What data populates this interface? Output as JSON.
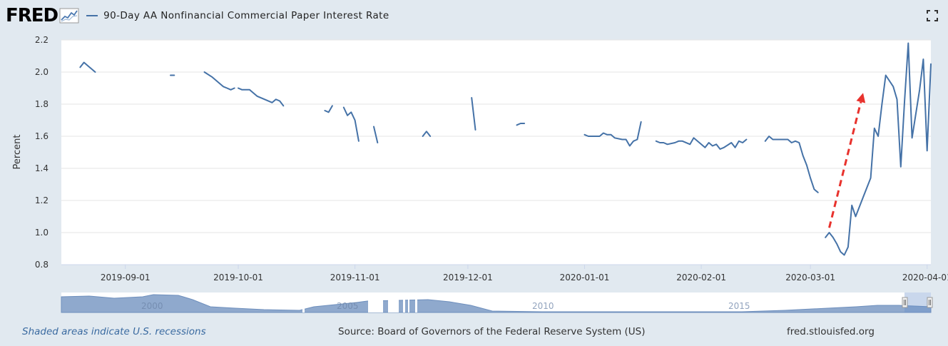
{
  "header": {
    "logo_text": "FRED",
    "series_title": "90-Day AA Nonfinancial Commercial Paper Interest Rate"
  },
  "footer": {
    "recession_note": "Shaded areas indicate U.S. recessions",
    "source": "Source: Board of Governors of the Federal Reserve System (US)",
    "site": "fred.stlouisfed.org"
  },
  "colors": {
    "series": "#4572a7",
    "annotation_arrow": "#e8322d",
    "navigator_fill": "#8fa9cd"
  },
  "icons": [
    "fred-logo-graph-icon",
    "fullscreen-icon"
  ],
  "chart_data": {
    "type": "line",
    "ylabel": "Percent",
    "ylim": [
      0.8,
      2.2
    ],
    "yticks": [
      "2.2",
      "2.0",
      "1.8",
      "1.6",
      "1.4",
      "1.2",
      "1.0",
      "0.8"
    ],
    "xticks": [
      "2019-09-01",
      "2019-10-01",
      "2019-11-01",
      "2019-12-01",
      "2020-01-01",
      "2020-02-01",
      "2020-03-01",
      "2020-04-01"
    ],
    "series": [
      {
        "name": "90-Day AA Nonfinancial Commercial Paper Interest Rate",
        "segments": [
          [
            [
              "2019-08-20",
              2.03
            ],
            [
              "2019-08-21",
              2.06
            ],
            [
              "2019-08-22",
              2.04
            ],
            [
              "2019-08-23",
              2.02
            ],
            [
              "2019-08-24",
              2.0
            ]
          ],
          [
            [
              "2019-09-13",
              1.98
            ],
            [
              "2019-09-14",
              1.98
            ]
          ],
          [
            [
              "2019-09-22",
              2.0
            ],
            [
              "2019-09-24",
              1.97
            ],
            [
              "2019-09-26",
              1.93
            ],
            [
              "2019-09-27",
              1.91
            ],
            [
              "2019-09-28",
              1.9
            ],
            [
              "2019-09-29",
              1.89
            ],
            [
              "2019-09-30",
              1.9
            ]
          ],
          [
            [
              "2019-10-01",
              1.9
            ],
            [
              "2019-10-02",
              1.89
            ],
            [
              "2019-10-04",
              1.89
            ],
            [
              "2019-10-06",
              1.85
            ],
            [
              "2019-10-08",
              1.83
            ],
            [
              "2019-10-10",
              1.81
            ],
            [
              "2019-10-11",
              1.83
            ],
            [
              "2019-10-12",
              1.82
            ],
            [
              "2019-10-13",
              1.79
            ]
          ],
          [
            [
              "2019-10-24",
              1.76
            ],
            [
              "2019-10-25",
              1.75
            ],
            [
              "2019-10-26",
              1.79
            ]
          ],
          [
            [
              "2019-10-29",
              1.78
            ],
            [
              "2019-10-30",
              1.73
            ],
            [
              "2019-10-31",
              1.75
            ],
            [
              "2019-11-01",
              1.7
            ],
            [
              "2019-11-02",
              1.57
            ]
          ],
          [
            [
              "2019-11-06",
              1.66
            ],
            [
              "2019-11-07",
              1.56
            ]
          ],
          [
            [
              "2019-11-19",
              1.6
            ],
            [
              "2019-11-20",
              1.63
            ],
            [
              "2019-11-21",
              1.6
            ]
          ],
          [
            [
              "2019-12-02",
              1.84
            ],
            [
              "2019-12-03",
              1.64
            ]
          ],
          [
            [
              "2019-12-14",
              1.67
            ],
            [
              "2019-12-15",
              1.68
            ],
            [
              "2019-12-16",
              1.68
            ]
          ],
          [
            [
              "2020-01-01",
              1.61
            ],
            [
              "2020-01-02",
              1.6
            ],
            [
              "2020-01-04",
              1.6
            ],
            [
              "2020-01-05",
              1.6
            ],
            [
              "2020-01-06",
              1.62
            ],
            [
              "2020-01-07",
              1.61
            ],
            [
              "2020-01-08",
              1.61
            ],
            [
              "2020-01-09",
              1.59
            ],
            [
              "2020-01-11",
              1.58
            ],
            [
              "2020-01-12",
              1.58
            ],
            [
              "2020-01-13",
              1.54
            ],
            [
              "2020-01-14",
              1.57
            ],
            [
              "2020-01-15",
              1.58
            ],
            [
              "2020-01-16",
              1.69
            ]
          ],
          [
            [
              "2020-01-20",
              1.57
            ],
            [
              "2020-01-21",
              1.56
            ],
            [
              "2020-01-22",
              1.56
            ],
            [
              "2020-01-23",
              1.55
            ],
            [
              "2020-01-25",
              1.56
            ],
            [
              "2020-01-26",
              1.57
            ],
            [
              "2020-01-27",
              1.57
            ],
            [
              "2020-01-29",
              1.55
            ],
            [
              "2020-01-30",
              1.59
            ],
            [
              "2020-01-31",
              1.57
            ],
            [
              "2020-02-02",
              1.53
            ],
            [
              "2020-02-03",
              1.56
            ],
            [
              "2020-02-04",
              1.54
            ],
            [
              "2020-02-05",
              1.55
            ],
            [
              "2020-02-06",
              1.52
            ],
            [
              "2020-02-07",
              1.53
            ],
            [
              "2020-02-09",
              1.56
            ],
            [
              "2020-02-10",
              1.53
            ],
            [
              "2020-02-11",
              1.57
            ],
            [
              "2020-02-12",
              1.56
            ],
            [
              "2020-02-13",
              1.58
            ]
          ],
          [
            [
              "2020-02-18",
              1.57
            ],
            [
              "2020-02-19",
              1.6
            ],
            [
              "2020-02-20",
              1.58
            ],
            [
              "2020-02-22",
              1.58
            ],
            [
              "2020-02-24",
              1.58
            ],
            [
              "2020-02-25",
              1.56
            ],
            [
              "2020-02-26",
              1.57
            ],
            [
              "2020-02-27",
              1.56
            ],
            [
              "2020-02-28",
              1.48
            ],
            [
              "2020-02-29",
              1.42
            ],
            [
              "2020-03-01",
              1.34
            ],
            [
              "2020-03-02",
              1.27
            ],
            [
              "2020-03-03",
              1.25
            ]
          ],
          [
            [
              "2020-03-05",
              0.97
            ],
            [
              "2020-03-06",
              1.0
            ],
            [
              "2020-03-07",
              0.97
            ],
            [
              "2020-03-08",
              0.93
            ],
            [
              "2020-03-09",
              0.88
            ],
            [
              "2020-03-10",
              0.86
            ],
            [
              "2020-03-11",
              0.91
            ],
            [
              "2020-03-12",
              1.17
            ],
            [
              "2020-03-13",
              1.1
            ],
            [
              "2020-03-15",
              1.22
            ],
            [
              "2020-03-17",
              1.34
            ],
            [
              "2020-03-18",
              1.65
            ],
            [
              "2020-03-19",
              1.6
            ],
            [
              "2020-03-20",
              1.8
            ],
            [
              "2020-03-21",
              1.98
            ],
            [
              "2020-03-23",
              1.91
            ],
            [
              "2020-03-24",
              1.83
            ],
            [
              "2020-03-25",
              1.41
            ],
            [
              "2020-03-26",
              1.82
            ],
            [
              "2020-03-27",
              2.18
            ],
            [
              "2020-03-28",
              1.59
            ],
            [
              "2020-03-30",
              1.89
            ],
            [
              "2020-03-31",
              2.08
            ],
            [
              "2020-04-01",
              1.51
            ],
            [
              "2020-04-02",
              2.05
            ]
          ]
        ]
      }
    ],
    "annotations": [
      {
        "type": "dashed-arrow",
        "from": [
          "2020-03-06",
          1.03
        ],
        "to": [
          "2020-03-15",
          1.87
        ]
      }
    ],
    "navigator": {
      "labels": [
        "2000",
        "2005",
        "2010",
        "2015"
      ]
    }
  }
}
